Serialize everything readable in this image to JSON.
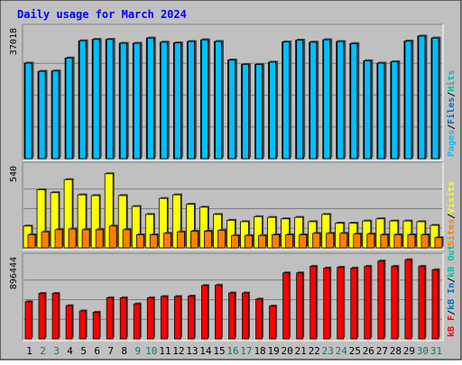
{
  "colors": {
    "frame_bg": "#c0c0c0",
    "panel_bg": "#c0c0c0",
    "gridline": "#808080",
    "title_text": "#0000ff",
    "hits": "#00a0ff",
    "files": "#0070c0",
    "pages": "#00c0ff",
    "visits": "#ffff00",
    "sites": "#ff8000",
    "kb_in": "#ff0000",
    "kb_out": "#00c0a0",
    "weekend_label": "#00805c",
    "weekday_label": "#000000"
  },
  "chart_data": {
    "type": "bar",
    "title": "Daily usage for March 2024",
    "categories": [
      "1",
      "2",
      "3",
      "4",
      "5",
      "6",
      "7",
      "8",
      "9",
      "10",
      "11",
      "12",
      "13",
      "14",
      "15",
      "16",
      "17",
      "18",
      "19",
      "20",
      "21",
      "22",
      "23",
      "24",
      "25",
      "26",
      "27",
      "28",
      "29",
      "30",
      "31"
    ],
    "weekend_days": [
      "2",
      "3",
      "9",
      "10",
      "16",
      "17",
      "23",
      "24",
      "30",
      "31"
    ],
    "panels": [
      {
        "id": "hits",
        "ymax": 37018,
        "ymax_label": "37018",
        "right_label_parts": [
          {
            "text": "Hits",
            "color_key": "kb_out"
          },
          {
            "text": "/",
            "color_key": "weekday_label"
          },
          {
            "text": "Files",
            "color_key": "files"
          },
          {
            "text": "/",
            "color_key": "weekday_label"
          },
          {
            "text": "Pages",
            "color_key": "pages"
          }
        ],
        "series": [
          {
            "name": "Hits",
            "color_key": "hits",
            "values": [
              27800,
              25400,
              25500,
              29300,
              34300,
              34700,
              34700,
              33600,
              33600,
              35100,
              33900,
              33700,
              34100,
              34600,
              34100,
              28700,
              27400,
              27400,
              28100,
              34000,
              34500,
              33900,
              34600,
              34100,
              33500,
              28500,
              27800,
              28200,
              34200,
              35700,
              35100
            ]
          },
          {
            "name": "Files",
            "color_key": "files",
            "values": [
              27800,
              25400,
              25500,
              29300,
              34300,
              34700,
              34700,
              33600,
              33600,
              35100,
              33900,
              33700,
              34100,
              34600,
              34100,
              28700,
              27400,
              27400,
              28100,
              34000,
              34500,
              33900,
              34600,
              34100,
              33500,
              28500,
              27800,
              28200,
              34200,
              35700,
              35100
            ]
          },
          {
            "name": "Pages",
            "color_key": "pages",
            "values": [
              27800,
              25400,
              25500,
              29300,
              34300,
              34700,
              34700,
              33600,
              33600,
              35100,
              33900,
              33700,
              34100,
              34600,
              34100,
              28700,
              27400,
              27400,
              28100,
              34000,
              34500,
              33900,
              34600,
              34100,
              33500,
              28500,
              27800,
              28200,
              34200,
              35700,
              35100
            ]
          }
        ]
      },
      {
        "id": "visits",
        "ymax": 540,
        "ymax_label": "540",
        "right_label_parts": [
          {
            "text": "Visits",
            "color_key": "visits"
          },
          {
            "text": "/",
            "color_key": "weekday_label"
          },
          {
            "text": "Sites",
            "color_key": "sites"
          }
        ],
        "series": [
          {
            "name": "Visits",
            "color_key": "visits",
            "values": [
              150,
              400,
              380,
              470,
              365,
              360,
              510,
              360,
              285,
              230,
              340,
              365,
              300,
              280,
              230,
              190,
              180,
              215,
              210,
              200,
              210,
              180,
              230,
              170,
              170,
              185,
              200,
              185,
              185,
              180,
              155
            ]
          },
          {
            "name": "Sites",
            "color_key": "sites",
            "values": [
              90,
              110,
              125,
              130,
              125,
              125,
              150,
              125,
              90,
              90,
              100,
              110,
              115,
              115,
              120,
              85,
              85,
              85,
              90,
              90,
              90,
              100,
              100,
              100,
              95,
              95,
              90,
              90,
              90,
              90,
              70
            ]
          }
        ]
      },
      {
        "id": "kbytes",
        "ymax": 896444,
        "ymax_label": "896444",
        "right_label_parts": [
          {
            "text": "kB Out",
            "color_key": "kb_out"
          },
          {
            "text": "/",
            "color_key": "weekday_label"
          },
          {
            "text": "kB In",
            "color_key": "files"
          },
          {
            "text": "/",
            "color_key": "weekday_label"
          },
          {
            "text": "kB F",
            "color_key": "kb_in"
          }
        ],
        "series": [
          {
            "name": "kB F",
            "color_key": "kb_in",
            "values": [
              425000,
              520000,
              520000,
              380000,
              320000,
              305000,
              470000,
              470000,
              400000,
              470000,
              485000,
              485000,
              490000,
              610000,
              615000,
              525000,
              525000,
              455000,
              375000,
              755000,
              755000,
              830000,
              810000,
              820000,
              810000,
              830000,
              890000,
              830000,
              905000,
              830000,
              790000
            ]
          }
        ]
      }
    ]
  }
}
